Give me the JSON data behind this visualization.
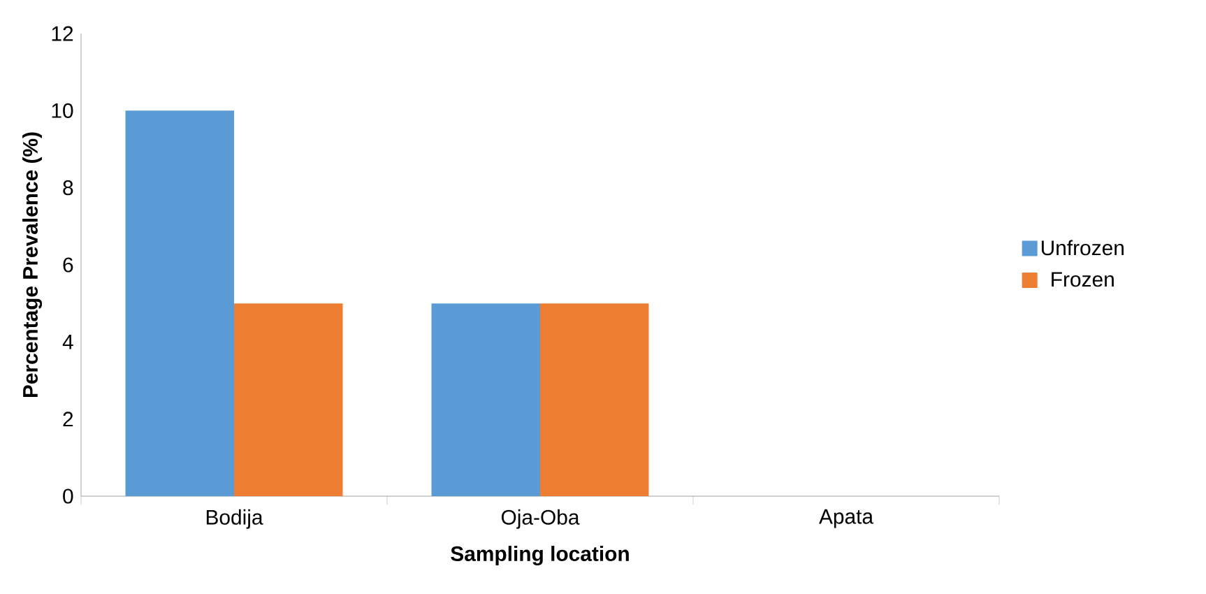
{
  "chart_data": {
    "type": "bar",
    "xlabel": "Sampling location",
    "ylabel": "Percentage Prevalence (%)",
    "categories": [
      "Bodija",
      "Oja-Oba",
      "Apata"
    ],
    "series": [
      {
        "name": "Unfrozen",
        "color": "#5b9bd5",
        "values": [
          10,
          5,
          0
        ]
      },
      {
        "name": "Frozen",
        "color": "#ed7d31",
        "values": [
          5,
          5,
          0
        ]
      }
    ],
    "ylim": [
      0,
      12
    ],
    "yticks": [
      0,
      2,
      4,
      6,
      8,
      10,
      12
    ],
    "grid": false,
    "legend": "right"
  }
}
